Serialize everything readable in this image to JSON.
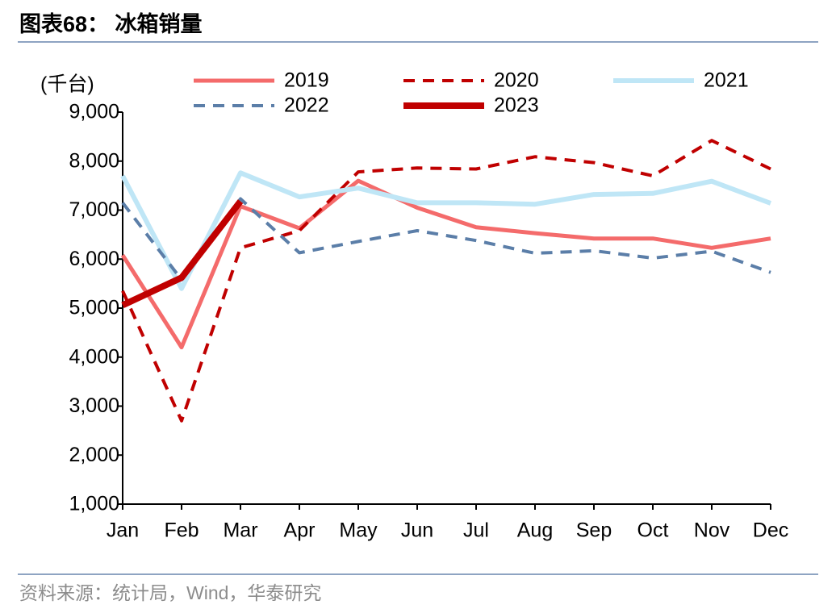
{
  "chart_data": {
    "type": "line",
    "title": "图表68： 冰箱销量",
    "y_label": "(千台)",
    "source": "资料来源：统计局，Wind，华泰研究",
    "categories": [
      "Jan",
      "Feb",
      "Mar",
      "Apr",
      "May",
      "Jun",
      "Jul",
      "Aug",
      "Sep",
      "Oct",
      "Nov",
      "Dec"
    ],
    "series": [
      {
        "name": "2019",
        "color": "#f46b6b",
        "linestyle": "solid",
        "linewidth": 5,
        "values": [
          6080,
          4200,
          7080,
          6630,
          7600,
          7050,
          6650,
          6530,
          6420,
          6420,
          6230,
          6420
        ]
      },
      {
        "name": "2020",
        "color": "#c00000",
        "linestyle": "dashed",
        "linewidth": 4,
        "values": [
          5350,
          2700,
          6230,
          6580,
          7780,
          7860,
          7840,
          8090,
          7970,
          7700,
          8420,
          7840
        ]
      },
      {
        "name": "2021",
        "color": "#bfe6f6",
        "linestyle": "solid",
        "linewidth": 6,
        "values": [
          7700,
          5400,
          7760,
          7270,
          7450,
          7150,
          7150,
          7120,
          7320,
          7340,
          7590,
          7140
        ]
      },
      {
        "name": "2022",
        "color": "#5b7ea8",
        "linestyle": "dashed",
        "linewidth": 4,
        "values": [
          7150,
          5580,
          7230,
          6130,
          6360,
          6580,
          6380,
          6120,
          6170,
          6020,
          6160,
          5730
        ]
      },
      {
        "name": "2023",
        "color": "#c00000",
        "linestyle": "solid",
        "linewidth": 8,
        "values": [
          5060,
          5620,
          7180,
          null,
          null,
          null,
          null,
          null,
          null,
          null,
          null,
          null
        ]
      }
    ],
    "ylim": [
      1000,
      9000
    ],
    "yticks": [
      {
        "value": 1000,
        "label": "1,000"
      },
      {
        "value": 2000,
        "label": "2,000"
      },
      {
        "value": 3000,
        "label": "3,000"
      },
      {
        "value": 4000,
        "label": "4,000"
      },
      {
        "value": 5000,
        "label": "5,000"
      },
      {
        "value": 6000,
        "label": "6,000"
      },
      {
        "value": 7000,
        "label": "7,000"
      },
      {
        "value": 8000,
        "label": "8,000"
      },
      {
        "value": 9000,
        "label": "9,000"
      }
    ],
    "grid": false,
    "legend": "top"
  }
}
